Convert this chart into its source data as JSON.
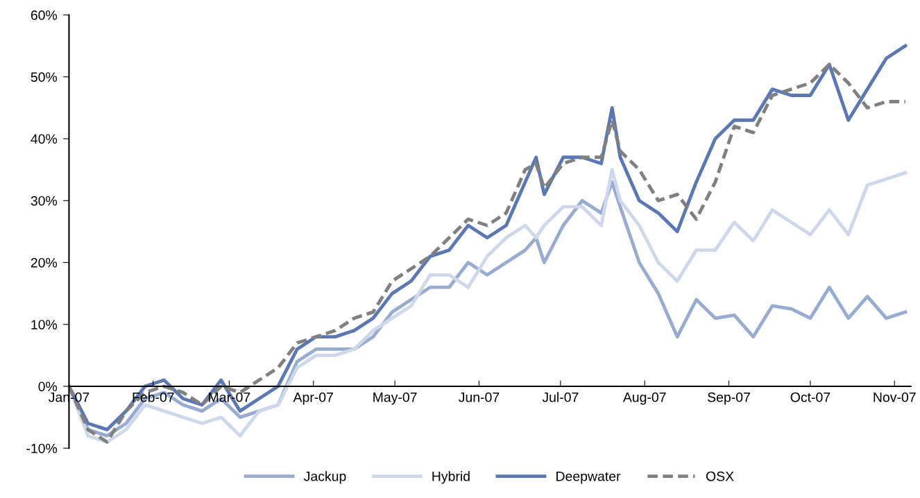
{
  "chart_data": {
    "type": "line",
    "x": [
      "2007-01-01",
      "2007-01-08",
      "2007-01-15",
      "2007-01-22",
      "2007-01-29",
      "2007-02-05",
      "2007-02-12",
      "2007-02-19",
      "2007-02-26",
      "2007-03-05",
      "2007-03-12",
      "2007-03-19",
      "2007-03-26",
      "2007-04-02",
      "2007-04-09",
      "2007-04-16",
      "2007-04-23",
      "2007-04-30",
      "2007-05-07",
      "2007-05-14",
      "2007-05-21",
      "2007-05-28",
      "2007-06-04",
      "2007-06-11",
      "2007-06-18",
      "2007-06-22",
      "2007-06-25",
      "2007-07-02",
      "2007-07-09",
      "2007-07-16",
      "2007-07-20",
      "2007-07-23",
      "2007-07-30",
      "2007-08-06",
      "2007-08-13",
      "2007-08-20",
      "2007-08-27",
      "2007-09-03",
      "2007-09-10",
      "2007-09-17",
      "2007-09-24",
      "2007-10-01",
      "2007-10-08",
      "2007-10-15",
      "2007-10-22",
      "2007-10-29",
      "2007-11-05"
    ],
    "series": [
      {
        "name": "Jackup",
        "color": "#98abd0",
        "values": [
          0,
          -7,
          -8,
          -6,
          -2,
          -1,
          -3,
          -4,
          -2,
          -5,
          -4,
          -3,
          4,
          6,
          6,
          6,
          8,
          12,
          14,
          16,
          16,
          20,
          18,
          20,
          22,
          24,
          20,
          26,
          30,
          28,
          33,
          29,
          20,
          15,
          8,
          14,
          11,
          11.5,
          8,
          13,
          12.5,
          11,
          16,
          11,
          14.5,
          11,
          12
        ]
      },
      {
        "name": "Hybrid",
        "color": "#cfd8ea",
        "values": [
          0,
          -8,
          -9,
          -7,
          -3,
          -4,
          -5,
          -6,
          -5,
          -8,
          -4,
          -3,
          3,
          5,
          5,
          6,
          9,
          11,
          13,
          18,
          18,
          16,
          21,
          24,
          26,
          24,
          26,
          29,
          29,
          26,
          35,
          30,
          26,
          20,
          17,
          22,
          22,
          26.5,
          23.5,
          28.5,
          26.5,
          24.5,
          28.5,
          24.5,
          32.5,
          33.5,
          34.5
        ]
      },
      {
        "name": "Deepwater",
        "color": "#5b78b4",
        "values": [
          0,
          -6,
          -7,
          -4,
          0,
          1,
          -2,
          -3,
          1,
          -4,
          -2,
          0,
          6,
          8,
          8,
          9,
          11,
          15,
          17,
          21,
          22,
          26,
          24,
          26,
          33,
          37,
          31,
          37,
          37,
          36,
          45,
          37,
          30,
          28,
          25,
          33,
          40,
          43,
          43,
          48,
          47,
          47,
          52,
          43,
          48,
          53,
          55
        ]
      },
      {
        "name": "OSX",
        "color": "#808080",
        "line_style": "dashed",
        "values": [
          0,
          -7,
          -9,
          -4,
          -1,
          0,
          -1,
          -3,
          0,
          -1,
          1,
          3,
          7,
          8,
          9,
          11,
          12,
          17,
          19,
          21,
          24,
          27,
          26,
          28,
          35,
          36,
          32,
          36,
          37,
          37,
          43,
          38,
          35,
          30,
          31,
          27,
          33,
          42,
          41,
          47,
          48,
          49,
          52,
          49,
          45,
          46,
          46
        ]
      }
    ],
    "xlim": [
      "2007-01-01",
      "2007-11-07"
    ],
    "xticks": [
      {
        "value": "2007-01-01",
        "label": "Jan-07"
      },
      {
        "value": "2007-02-01",
        "label": "Feb-07"
      },
      {
        "value": "2007-03-01",
        "label": "Mar-07"
      },
      {
        "value": "2007-04-01",
        "label": "Apr-07"
      },
      {
        "value": "2007-05-01",
        "label": "May-07"
      },
      {
        "value": "2007-06-01",
        "label": "Jun-07"
      },
      {
        "value": "2007-07-01",
        "label": "Jul-07"
      },
      {
        "value": "2007-08-01",
        "label": "Aug-07"
      },
      {
        "value": "2007-09-01",
        "label": "Sep-07"
      },
      {
        "value": "2007-10-01",
        "label": "Oct-07"
      },
      {
        "value": "2007-11-01",
        "label": "Nov-07"
      }
    ],
    "ylim": [
      -10,
      60
    ],
    "yticks": [
      {
        "value": -10,
        "label": "-10%"
      },
      {
        "value": 0,
        "label": "0%"
      },
      {
        "value": 10,
        "label": "10%"
      },
      {
        "value": 20,
        "label": "20%"
      },
      {
        "value": 30,
        "label": "30%"
      },
      {
        "value": 40,
        "label": "40%"
      },
      {
        "value": 50,
        "label": "50%"
      },
      {
        "value": 60,
        "label": "60%"
      }
    ],
    "grid": false,
    "legend": "bottom",
    "line_style": "solid"
  }
}
